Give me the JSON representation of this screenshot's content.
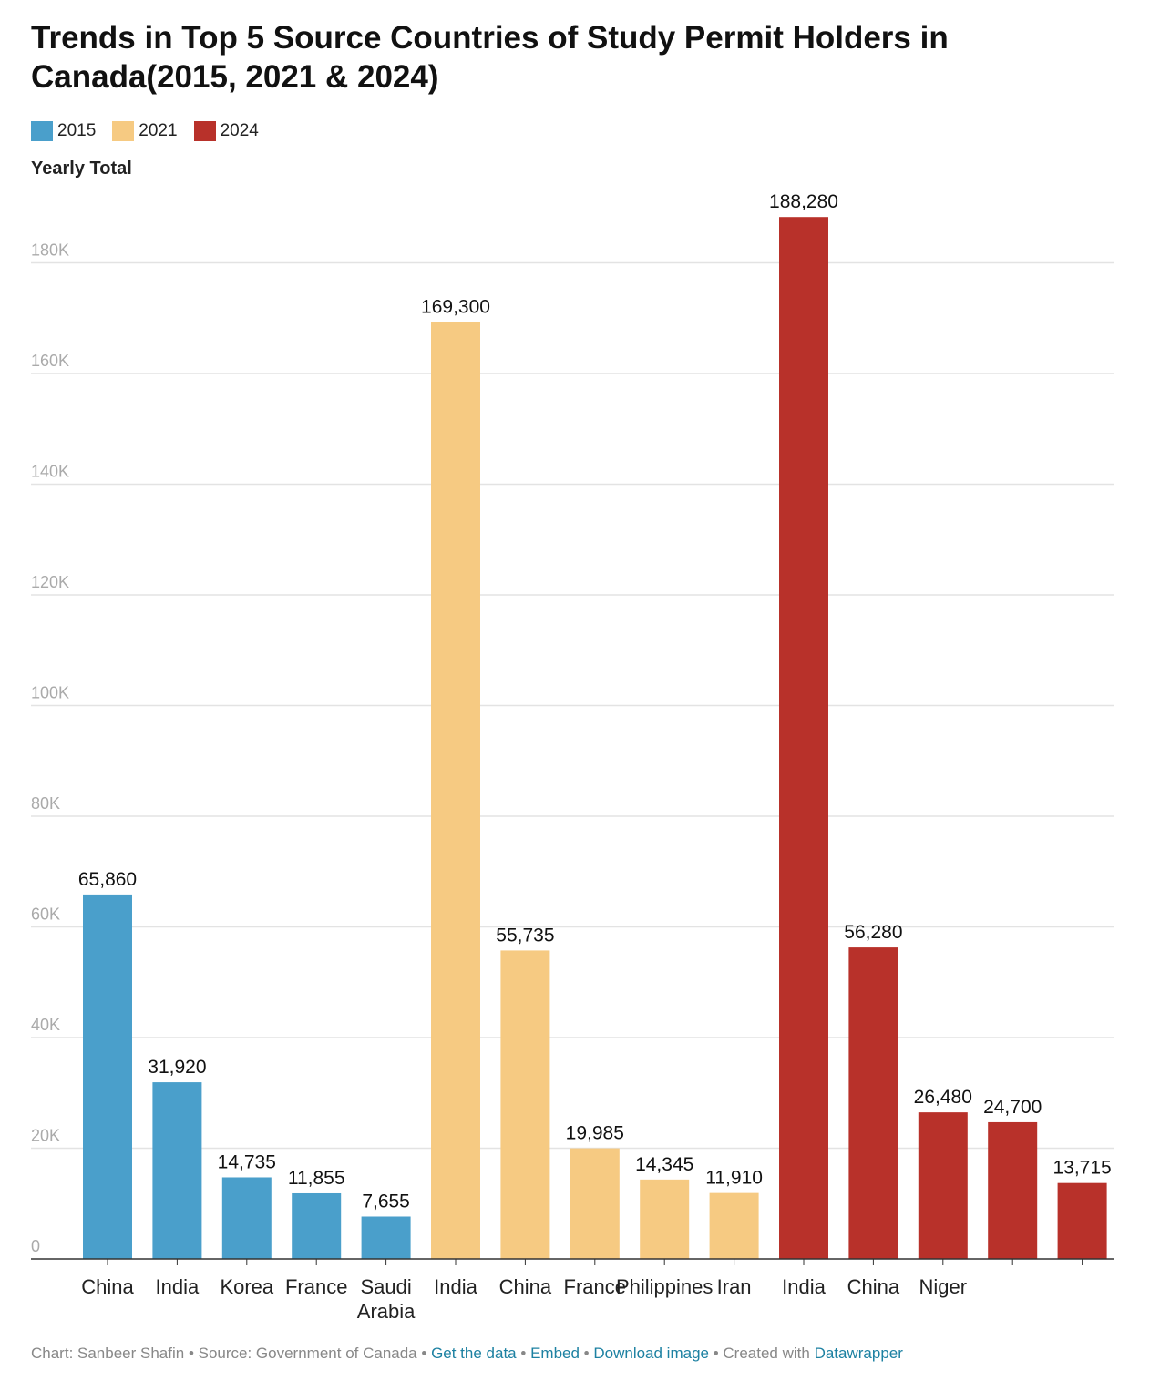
{
  "title": "Trends in Top 5 Source Countries of Study Permit Holders in Canada(2015, 2021 & 2024)",
  "y_axis_label": "Yearly Total",
  "legend": [
    {
      "label": "2015",
      "color": "#4a9fcb"
    },
    {
      "label": "2021",
      "color": "#f6ca82"
    },
    {
      "label": "2024",
      "color": "#b8312a"
    }
  ],
  "footer": {
    "prefix": "Chart: Sanbeer Shafin • Source: Government of Canada •",
    "get_data": "Get the data",
    "sep1": "•",
    "embed": "Embed",
    "sep2": " •",
    "download": "Download image",
    "created": "• Created with",
    "datawrapper": "Datawrapper"
  },
  "chart_data": {
    "type": "bar",
    "ylabel": "Yearly Total",
    "ylim": [
      0,
      190000
    ],
    "yticks": [
      0,
      20000,
      40000,
      60000,
      80000,
      100000,
      120000,
      140000,
      160000,
      180000
    ],
    "ytick_labels": [
      "0",
      "20K",
      "40K",
      "60K",
      "80K",
      "100K",
      "120K",
      "140K",
      "160K",
      "180K"
    ],
    "grid": true,
    "legend_position": "top-left",
    "categories": [
      "China",
      "India",
      "Korea",
      "France",
      "Saudi Arabia",
      "India",
      "China",
      "France",
      "Philippines",
      "Iran",
      "India",
      "China",
      "Niger"
    ],
    "bars": [
      {
        "label": "China",
        "group": "2015",
        "value": 65860,
        "value_label": "65,860"
      },
      {
        "label": "India",
        "group": "2015",
        "value": 31920,
        "value_label": "31,920"
      },
      {
        "label": "Korea",
        "group": "2015",
        "value": 14735,
        "value_label": "14,735"
      },
      {
        "label": "France",
        "group": "2015",
        "value": 11855,
        "value_label": "11,855"
      },
      {
        "label": "Saudi Arabia",
        "group": "2015",
        "value": 7655,
        "value_label": "7,655"
      },
      {
        "label": "India",
        "group": "2021",
        "value": 169300,
        "value_label": "169,300"
      },
      {
        "label": "China",
        "group": "2021",
        "value": 55735,
        "value_label": "55,735"
      },
      {
        "label": "France",
        "group": "2021",
        "value": 19985,
        "value_label": "19,985"
      },
      {
        "label": "Philippines",
        "group": "2021",
        "value": 14345,
        "value_label": "14,345"
      },
      {
        "label": "Iran",
        "group": "2021",
        "value": 11910,
        "value_label": "11,910"
      },
      {
        "label": "India",
        "group": "2024",
        "value": 188280,
        "value_label": "188,280"
      },
      {
        "label": "China",
        "group": "2024",
        "value": 56280,
        "value_label": "56,280"
      },
      {
        "label": "Niger",
        "group": "2024",
        "value": 26480,
        "value_label": "26,480"
      },
      {
        "label": "",
        "group": "2024",
        "value": 24700,
        "value_label": "24,700"
      },
      {
        "label": "",
        "group": "2024",
        "value": 13715,
        "value_label": "13,715"
      }
    ]
  }
}
